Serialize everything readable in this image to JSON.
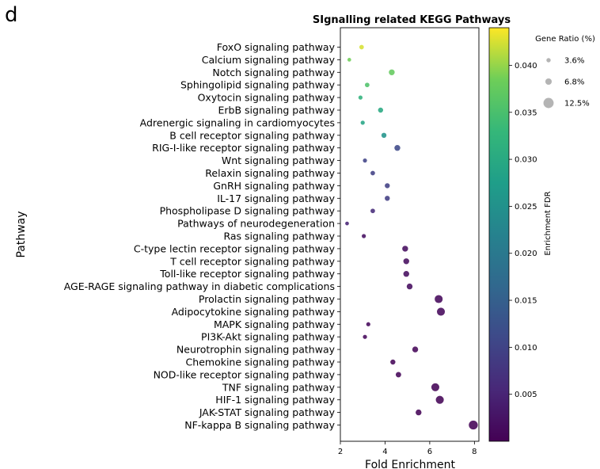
{
  "panel_label": "d",
  "chart_data": {
    "type": "scatter",
    "title": "SIgnalling related KEGG Pathways",
    "xlabel": "Fold Enrichment",
    "ylabel": "Pathway",
    "xlim": [
      2,
      8.2
    ],
    "xticks": [
      "2",
      "4",
      "6",
      "8"
    ],
    "grid": false,
    "categories": [
      "FoxO signaling pathway",
      "Calcium signaling pathway",
      "Notch signaling pathway",
      "Sphingolipid signaling pathway",
      "Oxytocin signaling pathway",
      "ErbB signaling pathway",
      "Adrenergic signaling in cardiomyocytes",
      "B cell receptor signaling pathway",
      "RIG-I-like receptor signaling pathway",
      "Wnt signaling pathway",
      "Relaxin signaling pathway",
      "GnRH signaling pathway",
      "IL-17 signaling pathway",
      "Phospholipase D signaling pathway",
      "Pathways of neurodegeneration",
      "Ras signaling pathway",
      "C-type lectin receptor signaling pathway",
      "T cell receptor signaling pathway",
      "Toll-like receptor signaling pathway",
      "AGE-RAGE signaling pathway in diabetic complications",
      "Prolactin signaling pathway",
      "Adipocytokine signaling pathway",
      "MAPK signaling pathway",
      "PI3K-Akt signaling pathway",
      "Neurotrophin signaling pathway",
      "Chemokine signaling pathway",
      "NOD-like receptor signaling pathway",
      "TNF signaling pathway",
      "HIF-1 signaling pathway",
      "JAK-STAT signaling pathway",
      "NF-kappa B signaling pathway"
    ],
    "points": [
      {
        "x": 2.95,
        "fdr": 0.0425,
        "ratio": 4.8
      },
      {
        "x": 2.4,
        "fdr": 0.0385,
        "ratio": 3.6
      },
      {
        "x": 4.3,
        "fdr": 0.0375,
        "ratio": 6.8
      },
      {
        "x": 3.2,
        "fdr": 0.0355,
        "ratio": 4.8
      },
      {
        "x": 2.9,
        "fdr": 0.032,
        "ratio": 4.2
      },
      {
        "x": 3.8,
        "fdr": 0.03,
        "ratio": 5.6
      },
      {
        "x": 3.0,
        "fdr": 0.029,
        "ratio": 4.2
      },
      {
        "x": 3.95,
        "fdr": 0.0255,
        "ratio": 5.6
      },
      {
        "x": 4.55,
        "fdr": 0.011,
        "ratio": 6.8
      },
      {
        "x": 3.1,
        "fdr": 0.01,
        "ratio": 4.2
      },
      {
        "x": 3.45,
        "fdr": 0.0095,
        "ratio": 4.8
      },
      {
        "x": 4.1,
        "fdr": 0.0095,
        "ratio": 5.6
      },
      {
        "x": 4.1,
        "fdr": 0.009,
        "ratio": 5.6
      },
      {
        "x": 3.45,
        "fdr": 0.006,
        "ratio": 4.8
      },
      {
        "x": 2.3,
        "fdr": 0.005,
        "ratio": 3.6
      },
      {
        "x": 3.05,
        "fdr": 0.002,
        "ratio": 4.2
      },
      {
        "x": 4.9,
        "fdr": 0.0015,
        "ratio": 6.8
      },
      {
        "x": 4.95,
        "fdr": 0.0015,
        "ratio": 6.8
      },
      {
        "x": 4.95,
        "fdr": 0.0015,
        "ratio": 6.8
      },
      {
        "x": 5.1,
        "fdr": 0.0015,
        "ratio": 6.8
      },
      {
        "x": 6.4,
        "fdr": 0.001,
        "ratio": 10.0
      },
      {
        "x": 6.5,
        "fdr": 0.001,
        "ratio": 10.0
      },
      {
        "x": 3.25,
        "fdr": 0.001,
        "ratio": 4.2
      },
      {
        "x": 3.1,
        "fdr": 0.001,
        "ratio": 4.2
      },
      {
        "x": 5.35,
        "fdr": 0.0008,
        "ratio": 6.8
      },
      {
        "x": 4.35,
        "fdr": 0.0008,
        "ratio": 5.6
      },
      {
        "x": 4.6,
        "fdr": 0.0008,
        "ratio": 6.2
      },
      {
        "x": 6.25,
        "fdr": 0.0005,
        "ratio": 10.0
      },
      {
        "x": 6.45,
        "fdr": 0.0005,
        "ratio": 10.0
      },
      {
        "x": 5.5,
        "fdr": 0.0005,
        "ratio": 6.8
      },
      {
        "x": 7.95,
        "fdr": 0.0003,
        "ratio": 11.5
      }
    ],
    "colorbar": {
      "label": "Enrichment FDR",
      "colormap": "viridis",
      "range": [
        0,
        0.044
      ],
      "ticks": [
        "0.005",
        "0.010",
        "0.015",
        "0.020",
        "0.025",
        "0.030",
        "0.035",
        "0.040"
      ],
      "tick_values": [
        0.005,
        0.01,
        0.015,
        0.02,
        0.025,
        0.03,
        0.035,
        0.04
      ]
    },
    "legend": {
      "title": "Gene Ratio (%)",
      "placement": "right",
      "entries": [
        {
          "label": "3.6%",
          "ratio": 3.6
        },
        {
          "label": "6.8%",
          "ratio": 6.8
        },
        {
          "label": "12.5%",
          "ratio": 12.5
        }
      ]
    }
  }
}
